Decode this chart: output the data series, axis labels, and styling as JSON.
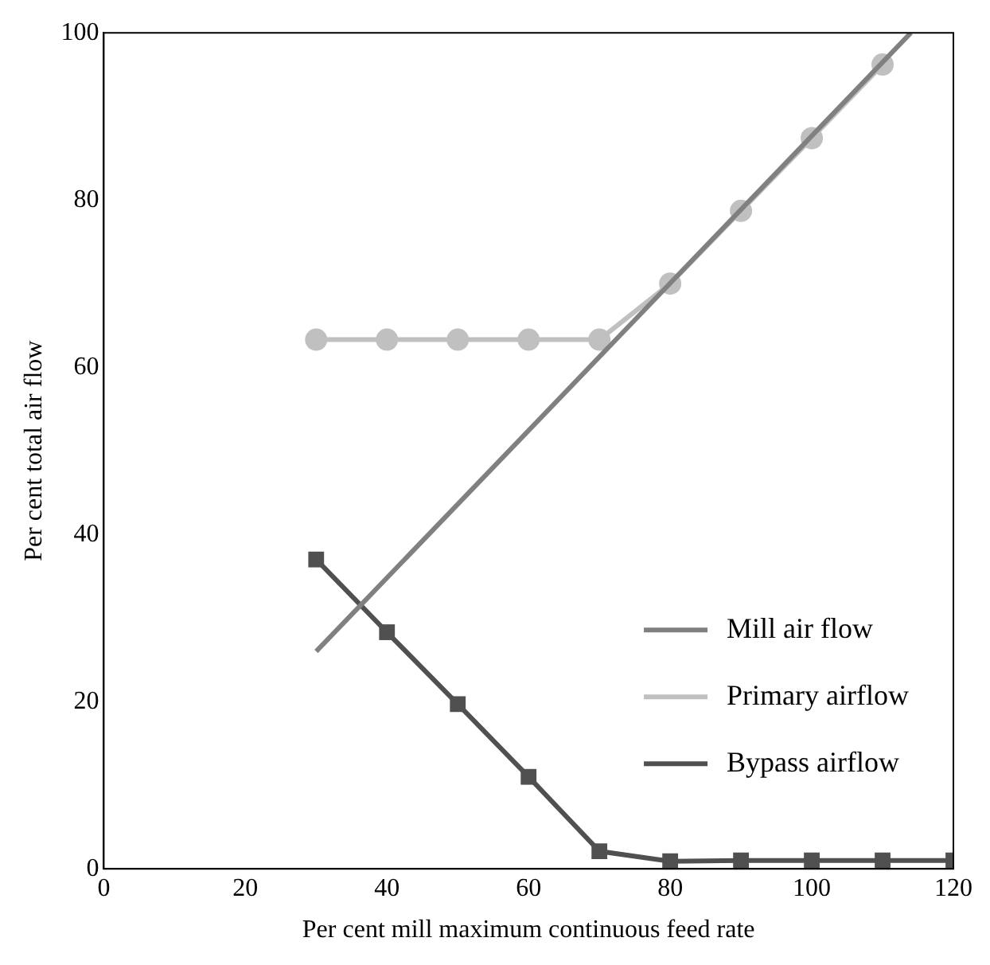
{
  "chart_data": {
    "type": "line",
    "xlabel": "Per cent mill maximum continuous feed rate",
    "ylabel": "Per cent total air flow",
    "xlim": [
      0,
      120
    ],
    "xticks": [
      0,
      20,
      40,
      60,
      80,
      100,
      120
    ],
    "ylim": [
      0,
      100
    ],
    "yticks": [
      0,
      20,
      40,
      60,
      80,
      100
    ],
    "grid": false,
    "legend": "bottom right",
    "series": [
      {
        "name": "Mill air flow",
        "color": "#808080",
        "marker": "none",
        "x": [
          30,
          114
        ],
        "values": [
          26,
          100
        ]
      },
      {
        "name": "Primary airflow",
        "color": "#c0c0c0",
        "marker": "circle",
        "x": [
          30,
          40,
          50,
          60,
          70,
          80,
          90,
          100,
          110
        ],
        "values": [
          63.3,
          63.3,
          63.3,
          63.3,
          63.3,
          70,
          78.7,
          87.4,
          96.2
        ]
      },
      {
        "name": "Bypass airflow",
        "color": "#505050",
        "marker": "square",
        "x": [
          30,
          40,
          50,
          60,
          70,
          80,
          90,
          100,
          110,
          120
        ],
        "values": [
          37,
          28.3,
          19.7,
          11,
          2.1,
          0.9,
          1,
          1,
          1,
          1
        ]
      }
    ]
  }
}
